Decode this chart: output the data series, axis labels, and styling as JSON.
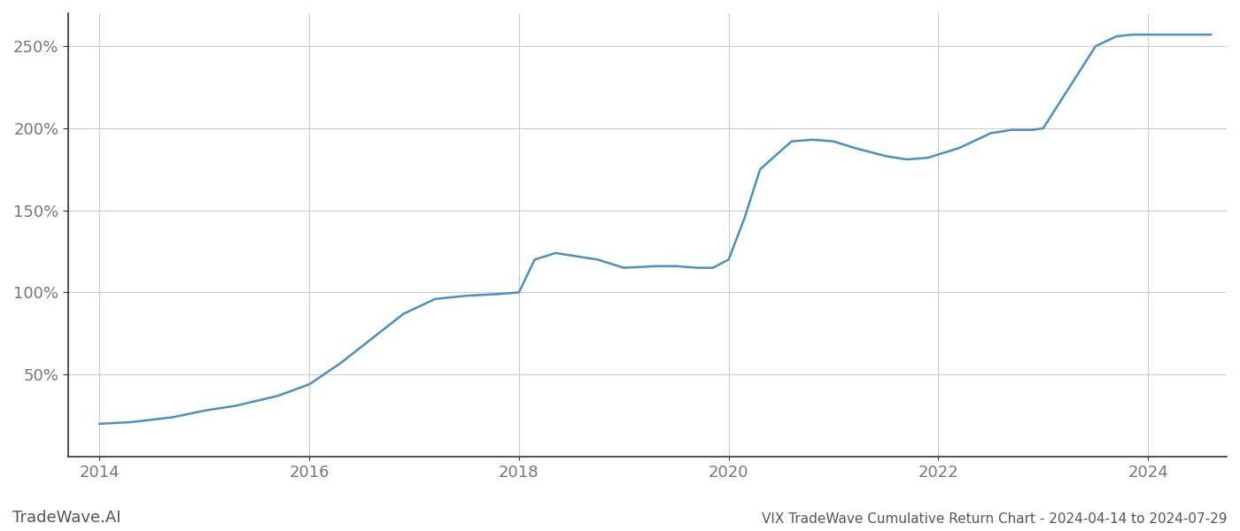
{
  "title": "VIX TradeWave Cumulative Return Chart - 2024-04-14 to 2024-07-29",
  "watermark": "TradeWave.AI",
  "line_color": "#4a90c4",
  "background_color": "#ffffff",
  "grid_color": "#cccccc",
  "data_x": [
    2014.0,
    2014.3,
    2014.7,
    2015.0,
    2015.3,
    2015.7,
    2016.0,
    2016.3,
    2016.6,
    2016.9,
    2017.2,
    2017.5,
    2017.8,
    2018.0,
    2018.15,
    2018.35,
    2018.55,
    2018.75,
    2019.0,
    2019.3,
    2019.5,
    2019.7,
    2019.85,
    2020.0,
    2020.15,
    2020.3,
    2020.6,
    2020.8,
    2021.0,
    2021.2,
    2021.5,
    2021.7,
    2021.9,
    2022.0,
    2022.2,
    2022.5,
    2022.7,
    2022.9,
    2023.0,
    2023.2,
    2023.5,
    2023.7,
    2023.85,
    2024.0,
    2024.3,
    2024.6
  ],
  "data_y": [
    20,
    21,
    24,
    28,
    31,
    37,
    44,
    57,
    72,
    87,
    96,
    98,
    99,
    100,
    120,
    124,
    122,
    120,
    115,
    116,
    116,
    115,
    115,
    120,
    145,
    175,
    192,
    193,
    192,
    188,
    183,
    181,
    182,
    184,
    188,
    197,
    199,
    199,
    200,
    220,
    250,
    256,
    257,
    257,
    257,
    257
  ],
  "ylim": [
    0,
    270
  ],
  "xlim": [
    2013.7,
    2024.75
  ],
  "yticks": [
    50,
    100,
    150,
    200,
    250
  ],
  "ytick_labels": [
    "50%",
    "100%",
    "150%",
    "200%",
    "250%"
  ],
  "xticks": [
    2014,
    2016,
    2018,
    2020,
    2022,
    2024
  ],
  "title_fontsize": 11,
  "tick_fontsize": 13,
  "watermark_fontsize": 13,
  "line_width": 1.8
}
